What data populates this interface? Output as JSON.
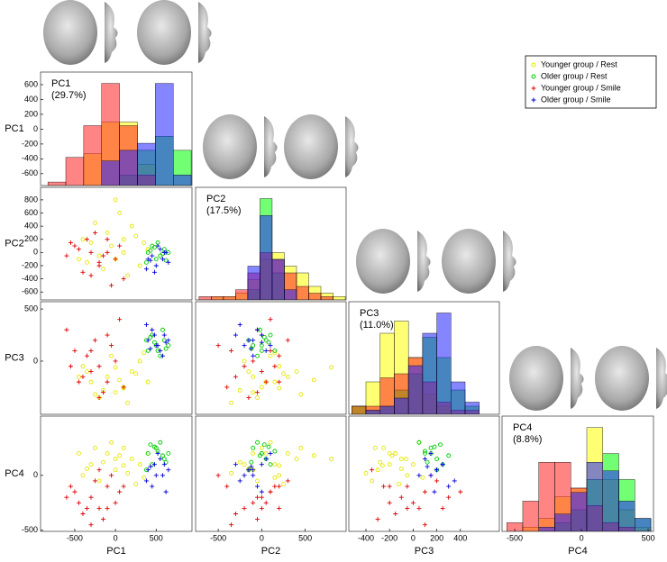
{
  "chart_data": {
    "type": "scatter-matrix",
    "series": [
      {
        "name": "Younger group / Rest",
        "color": "#e6e600",
        "marker": "o",
        "points": [
          [
            -300,
            150,
            -200,
            100
          ],
          [
            -100,
            300,
            -150,
            200
          ],
          [
            0,
            -100,
            -300,
            50
          ],
          [
            200,
            400,
            -100,
            150
          ],
          [
            -400,
            200,
            -50,
            0
          ],
          [
            100,
            0,
            -250,
            250
          ],
          [
            300,
            -200,
            0,
            100
          ],
          [
            -200,
            -50,
            -350,
            -50
          ],
          [
            50,
            600,
            -180,
            180
          ],
          [
            -50,
            100,
            50,
            300
          ],
          [
            250,
            250,
            -120,
            -80
          ],
          [
            -150,
            -250,
            -280,
            120
          ],
          [
            400,
            50,
            -200,
            200
          ],
          [
            -350,
            -150,
            -100,
            60
          ],
          [
            150,
            -350,
            -400,
            20
          ],
          [
            0,
            800,
            -60,
            150
          ],
          [
            -250,
            450,
            -320,
            250
          ],
          [
            350,
            150,
            80,
            -20
          ],
          [
            -450,
            -100,
            -150,
            200
          ],
          [
            100,
            200,
            -260,
            90
          ]
        ]
      },
      {
        "name": "Older group /  Rest",
        "color": "#00cc00",
        "marker": "o",
        "points": [
          [
            400,
            0,
            100,
            200
          ],
          [
            500,
            -100,
            150,
            250
          ],
          [
            600,
            50,
            200,
            150
          ],
          [
            450,
            100,
            250,
            100
          ],
          [
            550,
            -50,
            50,
            300
          ],
          [
            650,
            0,
            150,
            200
          ],
          [
            380,
            -150,
            200,
            50
          ],
          [
            520,
            150,
            100,
            220
          ],
          [
            580,
            -20,
            300,
            180
          ],
          [
            480,
            80,
            180,
            260
          ],
          [
            620,
            -120,
            120,
            120
          ],
          [
            430,
            30,
            230,
            280
          ]
        ]
      },
      {
        "name": "Younger group / Smile",
        "color": "#e00000",
        "marker": "+",
        "points": [
          [
            -300,
            0,
            -100,
            -200
          ],
          [
            -200,
            -200,
            -50,
            -300
          ],
          [
            -500,
            100,
            100,
            -150
          ],
          [
            -100,
            200,
            -200,
            -100
          ],
          [
            0,
            -100,
            0,
            -250
          ],
          [
            -400,
            -300,
            -150,
            -350
          ],
          [
            -250,
            300,
            200,
            -50
          ],
          [
            -600,
            -50,
            300,
            -200
          ],
          [
            100,
            -400,
            -250,
            -100
          ],
          [
            -150,
            -50,
            -300,
            -400
          ],
          [
            -350,
            200,
            50,
            -300
          ],
          [
            -50,
            -500,
            150,
            0
          ],
          [
            -450,
            50,
            -200,
            -250
          ],
          [
            50,
            100,
            400,
            -150
          ],
          [
            -200,
            -150,
            -350,
            50
          ],
          [
            -300,
            -350,
            100,
            -450
          ],
          [
            -550,
            150,
            -50,
            -100
          ],
          [
            -100,
            0,
            250,
            -300
          ]
        ]
      },
      {
        "name": "Older group / Smile",
        "color": "#0000dd",
        "marker": "+",
        "points": [
          [
            400,
            -100,
            200,
            50
          ],
          [
            500,
            -200,
            150,
            0
          ],
          [
            600,
            0,
            250,
            100
          ],
          [
            450,
            -50,
            300,
            -100
          ],
          [
            550,
            50,
            100,
            150
          ],
          [
            650,
            -150,
            200,
            50
          ],
          [
            380,
            -250,
            350,
            -50
          ],
          [
            520,
            100,
            150,
            200
          ],
          [
            580,
            -100,
            50,
            0
          ],
          [
            480,
            -300,
            250,
            100
          ],
          [
            620,
            0,
            180,
            -150
          ],
          [
            430,
            -120,
            120,
            80
          ]
        ]
      }
    ],
    "hist_colors": [
      "#ffff00",
      "#00ff00",
      "#ff2020",
      "#2020ff"
    ],
    "dims": [
      {
        "name": "PC1",
        "variance": "(29.7%)",
        "xlim": [
          -920,
          940
        ],
        "xticks": [
          -500,
          0,
          500
        ],
        "ylim": [
          -760,
          770
        ],
        "yticks": [
          -600,
          -400,
          -200,
          0,
          200,
          400,
          600
        ],
        "bins": [
          -830,
          -610,
          -390,
          -170,
          50,
          270,
          490,
          710,
          930
        ],
        "counts": [
          [
            0,
            0,
            9,
            18,
            18,
            6,
            0,
            0
          ],
          [
            0,
            0,
            0,
            0,
            3,
            10,
            14,
            10
          ],
          [
            1,
            8,
            17,
            29,
            17,
            3,
            0,
            0
          ],
          [
            0,
            0,
            0,
            7,
            10,
            12,
            29,
            3
          ]
        ]
      },
      {
        "name": "PC2",
        "variance": "(17.5%)",
        "xlim": [
          -760,
          970
        ],
        "xticks": [
          -500,
          0,
          500
        ],
        "ylim": [
          -720,
          990
        ],
        "yticks": [
          -600,
          -400,
          -200,
          0,
          200,
          400,
          600,
          800
        ],
        "bins": [
          -720,
          -580,
          -440,
          -300,
          -160,
          -20,
          120,
          260,
          400,
          540,
          680,
          820,
          960
        ],
        "counts": [
          [
            0,
            1,
            1,
            2,
            6,
            12,
            14,
            10,
            8,
            4,
            2,
            1
          ],
          [
            0,
            0,
            0,
            0,
            3,
            30,
            8,
            0,
            0,
            0,
            0,
            0
          ],
          [
            1,
            1,
            1,
            3,
            8,
            14,
            12,
            8,
            4,
            2,
            1,
            0
          ],
          [
            0,
            0,
            0,
            0,
            10,
            25,
            12,
            3,
            0,
            0,
            0,
            0
          ]
        ]
      },
      {
        "name": "PC3",
        "variance": "(11.0%)",
        "xlim": [
          -545,
          730
        ],
        "xticks": [
          -400,
          -200,
          0,
          200,
          400
        ],
        "ylim": [
          -510,
          570
        ],
        "yticks": [
          0,
          500
        ],
        "bins": [
          -520,
          -400,
          -280,
          -160,
          -40,
          80,
          200,
          320,
          440,
          560
        ],
        "counts": [
          [
            2,
            8,
            20,
            23,
            14,
            5,
            2,
            0,
            0
          ],
          [
            2,
            1,
            2,
            6,
            10,
            19,
            14,
            6,
            2
          ],
          [
            2,
            2,
            9,
            10,
            14,
            8,
            3,
            1,
            1
          ],
          [
            0,
            1,
            2,
            4,
            12,
            20,
            25,
            8,
            3
          ]
        ]
      },
      {
        "name": "PC4",
        "variance": "(8.8%)",
        "xlim": [
          -595,
          540
        ],
        "xticks": [
          -500,
          0,
          500
        ],
        "ylim": [
          -510,
          540
        ],
        "yticks": [
          -500,
          0
        ],
        "bins": [
          -560,
          -440,
          -320,
          -200,
          -80,
          40,
          160,
          280,
          400,
          520
        ],
        "counts": [
          [
            0,
            1,
            3,
            8,
            10,
            24,
            12,
            5,
            1
          ],
          [
            0,
            0,
            0,
            2,
            5,
            12,
            18,
            12,
            3
          ],
          [
            2,
            7,
            16,
            16,
            10,
            6,
            2,
            1,
            0
          ],
          [
            0,
            0,
            1,
            4,
            9,
            16,
            14,
            7,
            3
          ]
        ]
      }
    ]
  }
}
